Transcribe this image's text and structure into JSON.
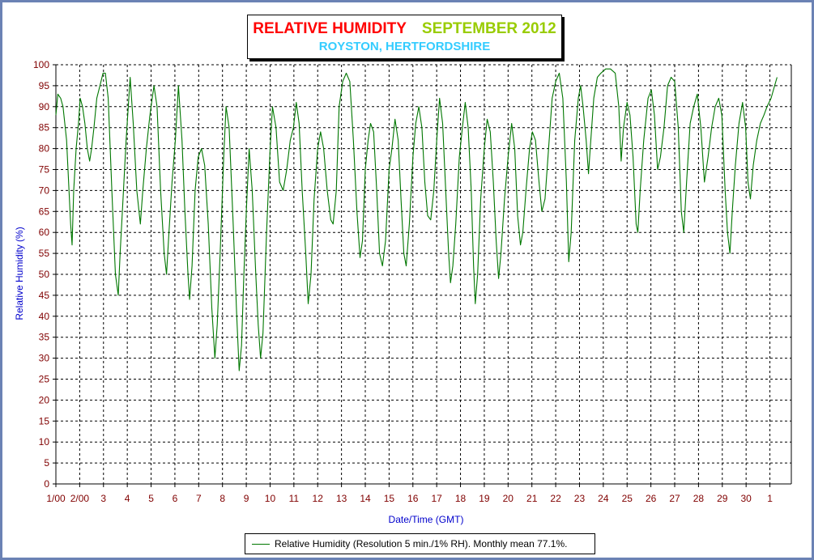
{
  "title": {
    "main": "RELATIVE HUMIDITY",
    "date": "SEPTEMBER 2012",
    "location": "ROYSTON, HERTFORDSHIRE"
  },
  "legend": {
    "label": "Relative Humidity (Resolution 5 min./1% RH). Monthly mean 77.1%."
  },
  "colors": {
    "line": "#007700",
    "tick_text": "#800000",
    "axis_title": "#0000cc",
    "title_main": "#ff0000",
    "title_date": "#99cc00",
    "title_location": "#33ccff",
    "frame": "#6b82b4"
  },
  "chart_data": {
    "type": "line",
    "xlabel": "Date/Time (GMT)",
    "ylabel": "Relative Humidity (%)",
    "ylim": [
      0,
      100
    ],
    "y_ticks": [
      0,
      5,
      10,
      15,
      20,
      25,
      30,
      35,
      40,
      45,
      50,
      55,
      60,
      65,
      70,
      75,
      80,
      85,
      90,
      95,
      100
    ],
    "xlim": [
      0,
      30.9
    ],
    "x_ticks": [
      {
        "x": 0,
        "label": "1/00"
      },
      {
        "x": 1,
        "label": "2/00"
      },
      {
        "x": 2,
        "label": "3"
      },
      {
        "x": 3,
        "label": "4"
      },
      {
        "x": 4,
        "label": "5"
      },
      {
        "x": 5,
        "label": "6"
      },
      {
        "x": 6,
        "label": "7"
      },
      {
        "x": 7,
        "label": "8"
      },
      {
        "x": 8,
        "label": "9"
      },
      {
        "x": 9,
        "label": "10"
      },
      {
        "x": 10,
        "label": "11"
      },
      {
        "x": 11,
        "label": "12"
      },
      {
        "x": 12,
        "label": "13"
      },
      {
        "x": 13,
        "label": "14"
      },
      {
        "x": 14,
        "label": "15"
      },
      {
        "x": 15,
        "label": "16"
      },
      {
        "x": 16,
        "label": "17"
      },
      {
        "x": 17,
        "label": "18"
      },
      {
        "x": 18,
        "label": "19"
      },
      {
        "x": 19,
        "label": "20"
      },
      {
        "x": 20,
        "label": "21"
      },
      {
        "x": 21,
        "label": "22"
      },
      {
        "x": 22,
        "label": "23"
      },
      {
        "x": 23,
        "label": "24"
      },
      {
        "x": 24,
        "label": "25"
      },
      {
        "x": 25,
        "label": "26"
      },
      {
        "x": 26,
        "label": "27"
      },
      {
        "x": 27,
        "label": "28"
      },
      {
        "x": 28,
        "label": "29"
      },
      {
        "x": 29,
        "label": "30"
      },
      {
        "x": 30,
        "label": "1"
      }
    ],
    "grid": true,
    "legend_position": "bottom-center",
    "series": [
      {
        "name": "Relative Humidity (Resolution 5 min./1% RH). Monthly mean 77.1%.",
        "points": [
          [
            0.0,
            88
          ],
          [
            0.08,
            93
          ],
          [
            0.2,
            92
          ],
          [
            0.3,
            90
          ],
          [
            0.45,
            82
          ],
          [
            0.55,
            70
          ],
          [
            0.62,
            62
          ],
          [
            0.68,
            57
          ],
          [
            0.75,
            70
          ],
          [
            0.85,
            80
          ],
          [
            0.95,
            86
          ],
          [
            1.02,
            92
          ],
          [
            1.12,
            90
          ],
          [
            1.22,
            86
          ],
          [
            1.32,
            80
          ],
          [
            1.42,
            77
          ],
          [
            1.5,
            80
          ],
          [
            1.6,
            85
          ],
          [
            1.72,
            92
          ],
          [
            1.85,
            95
          ],
          [
            1.98,
            98
          ],
          [
            2.08,
            98
          ],
          [
            2.2,
            92
          ],
          [
            2.35,
            70
          ],
          [
            2.5,
            50
          ],
          [
            2.62,
            45
          ],
          [
            2.7,
            55
          ],
          [
            2.82,
            68
          ],
          [
            2.95,
            82
          ],
          [
            3.12,
            97
          ],
          [
            3.25,
            86
          ],
          [
            3.4,
            70
          ],
          [
            3.55,
            62
          ],
          [
            3.65,
            70
          ],
          [
            3.8,
            80
          ],
          [
            3.95,
            88
          ],
          [
            4.12,
            95
          ],
          [
            4.25,
            90
          ],
          [
            4.4,
            70
          ],
          [
            4.55,
            55
          ],
          [
            4.65,
            50
          ],
          [
            4.75,
            60
          ],
          [
            4.88,
            72
          ],
          [
            5.02,
            82
          ],
          [
            5.15,
            95
          ],
          [
            5.3,
            82
          ],
          [
            5.42,
            65
          ],
          [
            5.55,
            50
          ],
          [
            5.62,
            44
          ],
          [
            5.72,
            52
          ],
          [
            5.85,
            70
          ],
          [
            5.98,
            78
          ],
          [
            6.12,
            80
          ],
          [
            6.25,
            76
          ],
          [
            6.4,
            62
          ],
          [
            6.55,
            42
          ],
          [
            6.68,
            30
          ],
          [
            6.78,
            38
          ],
          [
            6.9,
            55
          ],
          [
            7.05,
            78
          ],
          [
            7.15,
            90
          ],
          [
            7.28,
            85
          ],
          [
            7.45,
            62
          ],
          [
            7.6,
            40
          ],
          [
            7.7,
            27
          ],
          [
            7.8,
            33
          ],
          [
            7.9,
            50
          ],
          [
            8.0,
            65
          ],
          [
            8.12,
            80
          ],
          [
            8.25,
            70
          ],
          [
            8.4,
            50
          ],
          [
            8.5,
            38
          ],
          [
            8.6,
            30
          ],
          [
            8.7,
            36
          ],
          [
            8.85,
            60
          ],
          [
            9.0,
            80
          ],
          [
            9.1,
            90
          ],
          [
            9.25,
            85
          ],
          [
            9.4,
            72
          ],
          [
            9.55,
            70
          ],
          [
            9.7,
            75
          ],
          [
            9.85,
            82
          ],
          [
            9.98,
            85
          ],
          [
            10.1,
            91
          ],
          [
            10.22,
            86
          ],
          [
            10.35,
            70
          ],
          [
            10.5,
            55
          ],
          [
            10.6,
            43
          ],
          [
            10.72,
            50
          ],
          [
            10.85,
            68
          ],
          [
            11.0,
            80
          ],
          [
            11.12,
            84
          ],
          [
            11.25,
            80
          ],
          [
            11.4,
            70
          ],
          [
            11.55,
            63
          ],
          [
            11.65,
            62
          ],
          [
            11.78,
            70
          ],
          [
            11.9,
            90
          ],
          [
            12.05,
            96
          ],
          [
            12.2,
            98
          ],
          [
            12.35,
            96
          ],
          [
            12.5,
            82
          ],
          [
            12.65,
            65
          ],
          [
            12.78,
            54
          ],
          [
            12.88,
            58
          ],
          [
            13.0,
            75
          ],
          [
            13.12,
            82
          ],
          [
            13.22,
            86
          ],
          [
            13.35,
            84
          ],
          [
            13.48,
            70
          ],
          [
            13.6,
            55
          ],
          [
            13.72,
            52
          ],
          [
            13.85,
            58
          ],
          [
            14.0,
            75
          ],
          [
            14.12,
            80
          ],
          [
            14.25,
            87
          ],
          [
            14.38,
            82
          ],
          [
            14.5,
            68
          ],
          [
            14.62,
            55
          ],
          [
            14.72,
            52
          ],
          [
            14.85,
            62
          ],
          [
            15.0,
            78
          ],
          [
            15.12,
            86
          ],
          [
            15.25,
            90
          ],
          [
            15.38,
            85
          ],
          [
            15.5,
            72
          ],
          [
            15.62,
            64
          ],
          [
            15.75,
            63
          ],
          [
            15.88,
            70
          ],
          [
            16.0,
            82
          ],
          [
            16.12,
            92
          ],
          [
            16.25,
            86
          ],
          [
            16.38,
            70
          ],
          [
            16.5,
            55
          ],
          [
            16.58,
            48
          ],
          [
            16.68,
            52
          ],
          [
            16.8,
            62
          ],
          [
            16.95,
            78
          ],
          [
            17.08,
            85
          ],
          [
            17.2,
            91
          ],
          [
            17.32,
            85
          ],
          [
            17.45,
            70
          ],
          [
            17.55,
            52
          ],
          [
            17.62,
            43
          ],
          [
            17.72,
            50
          ],
          [
            17.85,
            68
          ],
          [
            18.0,
            80
          ],
          [
            18.12,
            87
          ],
          [
            18.25,
            84
          ],
          [
            18.38,
            72
          ],
          [
            18.5,
            58
          ],
          [
            18.6,
            49
          ],
          [
            18.7,
            55
          ],
          [
            18.85,
            68
          ],
          [
            19.0,
            78
          ],
          [
            19.15,
            86
          ],
          [
            19.28,
            80
          ],
          [
            19.4,
            64
          ],
          [
            19.52,
            57
          ],
          [
            19.62,
            60
          ],
          [
            19.75,
            70
          ],
          [
            19.9,
            80
          ],
          [
            20.02,
            84
          ],
          [
            20.15,
            82
          ],
          [
            20.3,
            72
          ],
          [
            20.42,
            65
          ],
          [
            20.55,
            68
          ],
          [
            20.7,
            80
          ],
          [
            20.85,
            92
          ],
          [
            21.0,
            96
          ],
          [
            21.15,
            98
          ],
          [
            21.3,
            92
          ],
          [
            21.45,
            72
          ],
          [
            21.55,
            53
          ],
          [
            21.65,
            60
          ],
          [
            21.8,
            82
          ],
          [
            21.95,
            92
          ],
          [
            22.05,
            95
          ],
          [
            22.15,
            90
          ],
          [
            22.28,
            82
          ],
          [
            22.38,
            74
          ],
          [
            22.45,
            80
          ],
          [
            22.6,
            92
          ],
          [
            22.75,
            97
          ],
          [
            22.9,
            98
          ],
          [
            23.1,
            99
          ],
          [
            23.3,
            99
          ],
          [
            23.5,
            98
          ],
          [
            23.65,
            90
          ],
          [
            23.75,
            77
          ],
          [
            23.85,
            85
          ],
          [
            24.0,
            91
          ],
          [
            24.12,
            88
          ],
          [
            24.25,
            78
          ],
          [
            24.38,
            62
          ],
          [
            24.45,
            60
          ],
          [
            24.55,
            70
          ],
          [
            24.7,
            82
          ],
          [
            24.88,
            92
          ],
          [
            25.02,
            94
          ],
          [
            25.15,
            88
          ],
          [
            25.28,
            75
          ],
          [
            25.4,
            78
          ],
          [
            25.55,
            85
          ],
          [
            25.7,
            95
          ],
          [
            25.85,
            97
          ],
          [
            26.0,
            96
          ],
          [
            26.15,
            85
          ],
          [
            26.28,
            65
          ],
          [
            26.38,
            60
          ],
          [
            26.5,
            72
          ],
          [
            26.65,
            86
          ],
          [
            26.8,
            90
          ],
          [
            26.95,
            93
          ],
          [
            27.1,
            85
          ],
          [
            27.25,
            72
          ],
          [
            27.4,
            78
          ],
          [
            27.55,
            85
          ],
          [
            27.7,
            90
          ],
          [
            27.85,
            92
          ],
          [
            27.98,
            88
          ],
          [
            28.12,
            70
          ],
          [
            28.22,
            60
          ],
          [
            28.32,
            55
          ],
          [
            28.42,
            65
          ],
          [
            28.55,
            76
          ],
          [
            28.7,
            86
          ],
          [
            28.85,
            91
          ],
          [
            28.98,
            85
          ],
          [
            29.08,
            72
          ],
          [
            29.18,
            68
          ],
          [
            29.3,
            76
          ],
          [
            29.45,
            82
          ],
          [
            29.6,
            86
          ],
          [
            29.75,
            88
          ],
          [
            29.88,
            90
          ],
          [
            30.05,
            92
          ],
          [
            30.2,
            95
          ],
          [
            30.3,
            97
          ]
        ]
      }
    ]
  }
}
